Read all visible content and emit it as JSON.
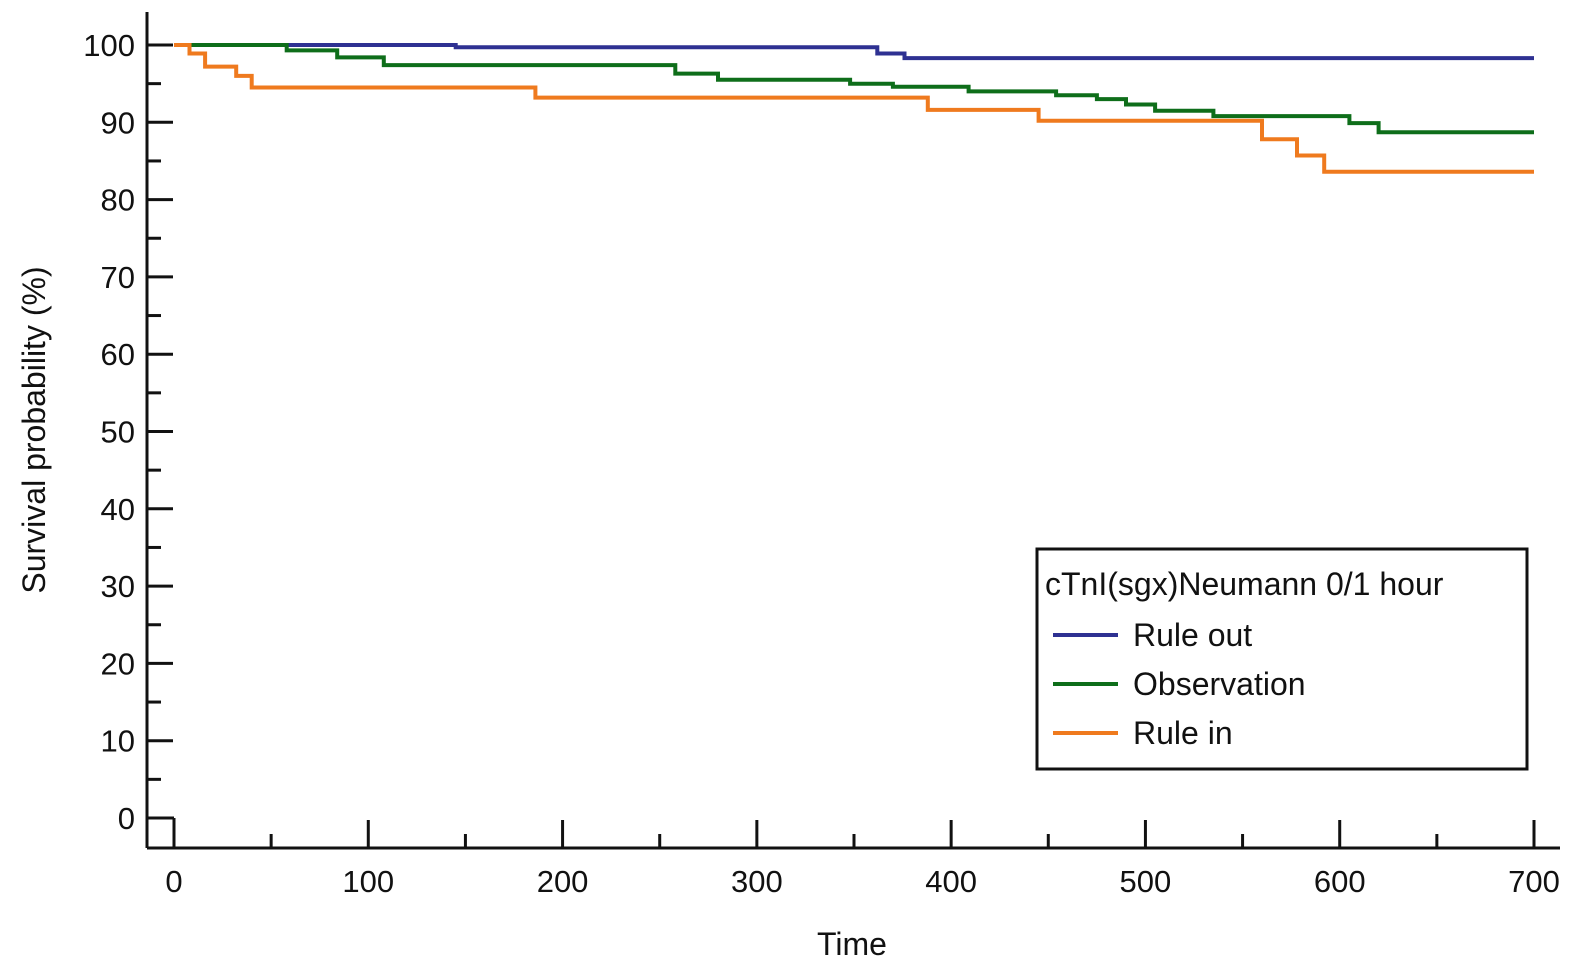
{
  "chart_data": {
    "type": "line",
    "subtype": "kaplan-meier step",
    "title": "",
    "xlabel": "Time",
    "ylabel": "Survival probability (%)",
    "xlim": [
      0,
      700
    ],
    "ylim": [
      0,
      100
    ],
    "x_ticks": [
      0,
      100,
      200,
      300,
      400,
      500,
      600,
      700
    ],
    "x_tick_labels": [
      "0",
      "100",
      "200",
      "300",
      "400",
      "500",
      "600",
      "700"
    ],
    "y_ticks": [
      0,
      10,
      20,
      30,
      40,
      50,
      60,
      70,
      80,
      90,
      100
    ],
    "y_tick_labels": [
      "0",
      "10",
      "20",
      "30",
      "40",
      "50",
      "60",
      "70",
      "80",
      "90",
      "100"
    ],
    "grid": false,
    "legend": {
      "title": "cTnI(sgx)Neumann 0/1 hour",
      "placement": "bottom-right"
    },
    "series": [
      {
        "name": "Rule out",
        "color": "#2e3192",
        "x": [
          0,
          145,
          362,
          376,
          700
        ],
        "y": [
          100,
          99.7,
          98.9,
          98.3,
          98.3
        ]
      },
      {
        "name": "Observation",
        "color": "#0e6e1a",
        "x": [
          0,
          58,
          84,
          108,
          258,
          280,
          348,
          370,
          409,
          454,
          475,
          490,
          505,
          535,
          605,
          620,
          700
        ],
        "y": [
          100,
          99.3,
          98.4,
          97.4,
          96.3,
          95.5,
          95.0,
          94.6,
          94.0,
          93.5,
          93.0,
          92.3,
          91.5,
          90.8,
          89.9,
          88.7,
          88.7
        ]
      },
      {
        "name": "Rule in",
        "color": "#ef7a1e",
        "x": [
          0,
          8,
          16,
          32,
          40,
          186,
          388,
          445,
          560,
          578,
          592,
          700
        ],
        "y": [
          100,
          98.9,
          97.2,
          96.0,
          94.5,
          93.2,
          91.6,
          90.2,
          87.8,
          85.7,
          83.6,
          83.6
        ]
      }
    ]
  }
}
